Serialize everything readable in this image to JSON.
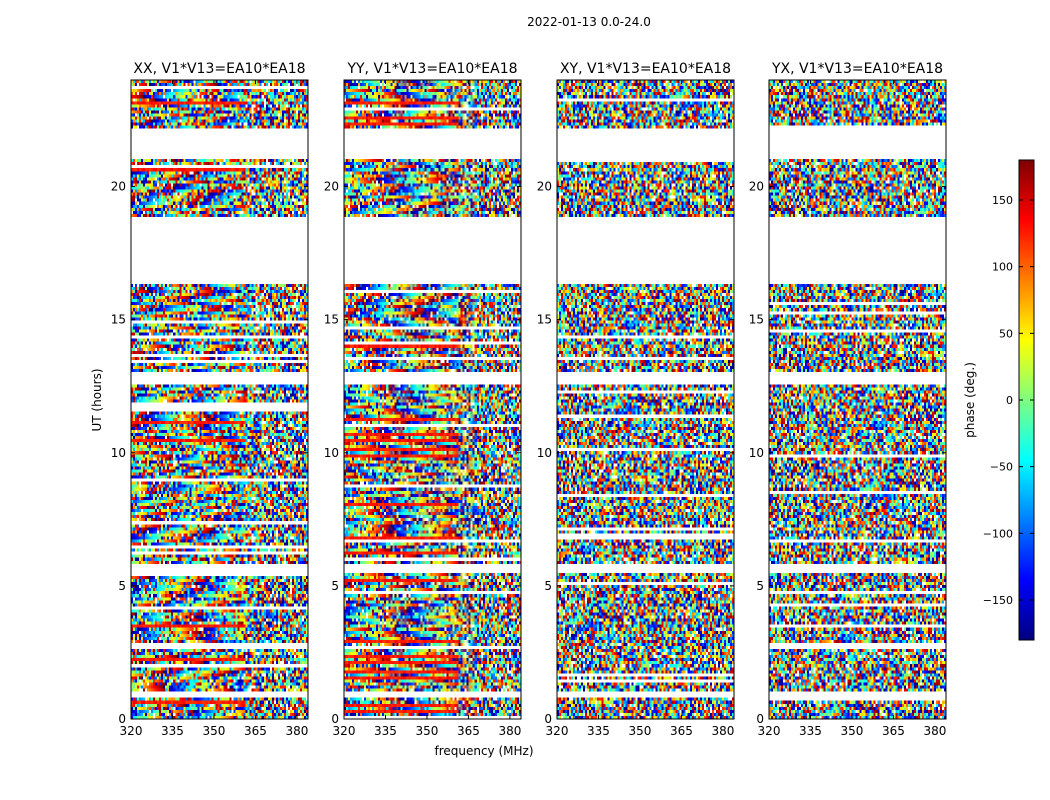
{
  "figure_title": "2022-01-13 0.0-24.0",
  "chart_data": {
    "type": "heatmap",
    "title": "2022-01-13 0.0-24.0",
    "xlabel": "frequency (MHz)",
    "ylabel": "UT (hours)",
    "xlim": [
      320,
      384
    ],
    "ylim": [
      0,
      24
    ],
    "xticks": [
      320,
      335,
      350,
      365,
      380
    ],
    "yticks": [
      0,
      5,
      10,
      15,
      20
    ],
    "panels": [
      {
        "title": "XX, V1*V13=EA10*EA18",
        "pol": "XX"
      },
      {
        "title": "YY, V1*V13=EA10*EA18",
        "pol": "YY"
      },
      {
        "title": "XY, V1*V13=EA10*EA18",
        "pol": "XY"
      },
      {
        "title": "YX, V1*V13=EA10*EA18",
        "pol": "YX"
      }
    ],
    "data_gaps_hours": [
      [
        22.2,
        21.0
      ],
      [
        18.9,
        16.3
      ],
      [
        13.0,
        12.6
      ],
      [
        5.8,
        5.5
      ],
      [
        1.0,
        0.8
      ]
    ],
    "colorbar": {
      "label": "phase (deg.)",
      "range": [
        -180,
        180
      ],
      "ticks": [
        150,
        100,
        50,
        0,
        -50,
        -100,
        -150
      ],
      "tick_labels": [
        "150",
        "100",
        "50",
        "0",
        "−50",
        "−100",
        "−150"
      ],
      "colormap": [
        "#00007f",
        "#0000ff",
        "#007fff",
        "#00ffff",
        "#7fff7f",
        "#ffff00",
        "#ff7f00",
        "#ff0000",
        "#7f0000"
      ]
    }
  }
}
